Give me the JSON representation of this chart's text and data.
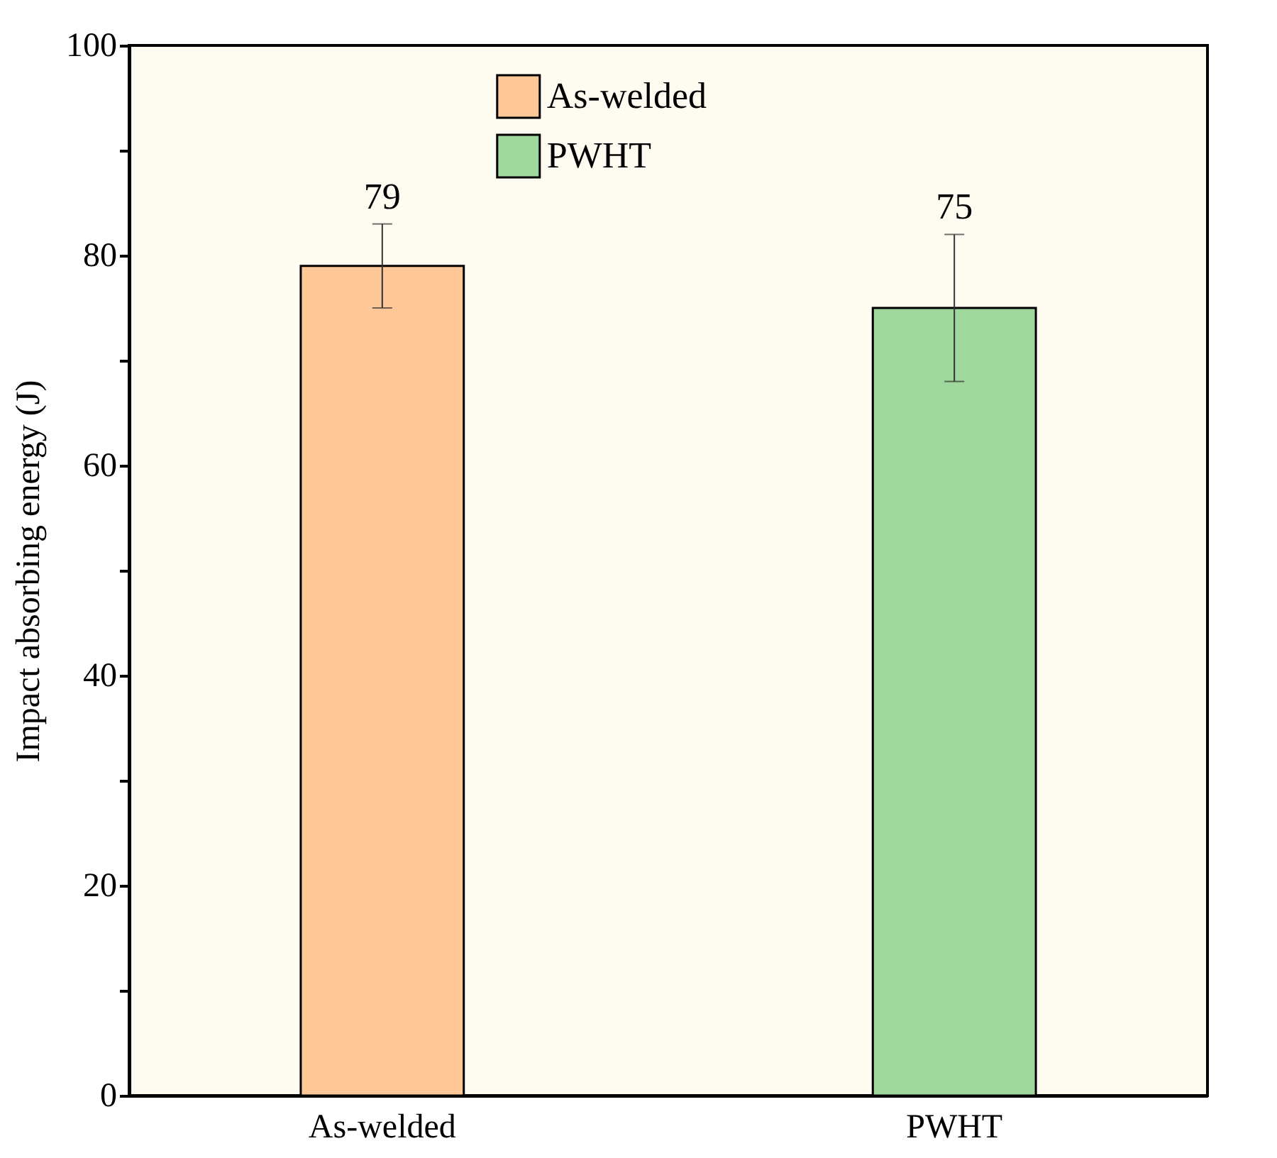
{
  "chart_data": {
    "type": "bar",
    "ylabel": "Impact absorbing energy (J)",
    "categories": [
      "As-welded",
      "PWHT"
    ],
    "series": [
      {
        "name": "As-welded",
        "color": "#fdc797",
        "values": [
          79,
          null
        ],
        "errors": [
          [
            75,
            83
          ],
          null
        ]
      },
      {
        "name": "PWHT",
        "color": "#9fd89c",
        "values": [
          null,
          75
        ],
        "errors": [
          null,
          [
            68,
            82
          ]
        ]
      }
    ],
    "data_labels": true,
    "legend": "top",
    "grid": false,
    "ylim": [
      0,
      100
    ],
    "yticks": [
      0,
      {
        "value": 10,
        "label": null
      },
      20,
      {
        "value": 30,
        "label": null
      },
      40,
      {
        "value": 50,
        "label": null
      },
      60,
      {
        "value": 70,
        "label": null
      },
      80,
      {
        "value": 90,
        "label": null
      },
      100
    ]
  }
}
